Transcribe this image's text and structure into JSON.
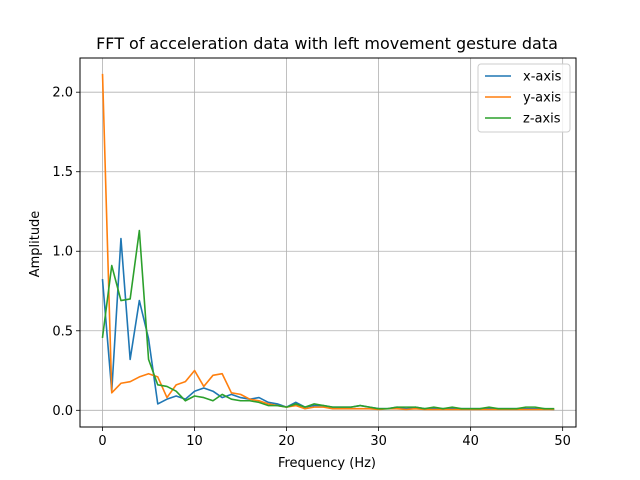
{
  "chart_data": {
    "type": "line",
    "title": "FFT of acceleration data with left movement gesture data",
    "xlabel": "Frequency (Hz)",
    "ylabel": "Amplitude",
    "xlim": [
      -2.45,
      51.45
    ],
    "ylim": [
      -0.105,
      2.215
    ],
    "x_ticks": [
      0,
      10,
      20,
      30,
      40,
      50
    ],
    "y_ticks": [
      0.0,
      0.5,
      1.0,
      1.5,
      2.0
    ],
    "x_tick_labels": [
      "0",
      "10",
      "20",
      "30",
      "40",
      "50"
    ],
    "y_tick_labels": [
      "0.0",
      "0.5",
      "1.0",
      "1.5",
      "2.0"
    ],
    "grid": true,
    "legend_position": "top-right",
    "x": [
      0,
      1,
      2,
      3,
      4,
      5,
      6,
      7,
      8,
      9,
      10,
      11,
      12,
      13,
      14,
      15,
      16,
      17,
      18,
      19,
      20,
      21,
      22,
      23,
      24,
      25,
      26,
      27,
      28,
      29,
      30,
      31,
      32,
      33,
      34,
      35,
      36,
      37,
      38,
      39,
      40,
      41,
      42,
      43,
      44,
      45,
      46,
      47,
      48,
      49
    ],
    "series": [
      {
        "name": "x-axis",
        "color": "#1f77b4",
        "values": [
          0.82,
          0.12,
          1.08,
          0.32,
          0.69,
          0.45,
          0.04,
          0.07,
          0.09,
          0.07,
          0.12,
          0.14,
          0.12,
          0.08,
          0.1,
          0.08,
          0.07,
          0.08,
          0.05,
          0.04,
          0.02,
          0.05,
          0.02,
          0.03,
          0.03,
          0.02,
          0.02,
          0.02,
          0.03,
          0.02,
          0.01,
          0.01,
          0.02,
          0.01,
          0.02,
          0.01,
          0.01,
          0.01,
          0.01,
          0.01,
          0.01,
          0.01,
          0.01,
          0.01,
          0.01,
          0.01,
          0.01,
          0.01,
          0.01,
          0.005
        ]
      },
      {
        "name": "y-axis",
        "color": "#ff7f0e",
        "values": [
          2.11,
          0.11,
          0.17,
          0.18,
          0.21,
          0.23,
          0.21,
          0.08,
          0.16,
          0.18,
          0.25,
          0.15,
          0.22,
          0.23,
          0.11,
          0.1,
          0.07,
          0.06,
          0.04,
          0.03,
          0.02,
          0.03,
          0.01,
          0.02,
          0.02,
          0.01,
          0.01,
          0.01,
          0.01,
          0.01,
          0.005,
          0.01,
          0.01,
          0.005,
          0.01,
          0.005,
          0.005,
          0.005,
          0.005,
          0.005,
          0.005,
          0.005,
          0.005,
          0.005,
          0.005,
          0.005,
          0.005,
          0.005,
          0.005,
          0.005
        ]
      },
      {
        "name": "z-axis",
        "color": "#2ca02c",
        "values": [
          0.46,
          0.91,
          0.69,
          0.7,
          1.13,
          0.32,
          0.16,
          0.15,
          0.12,
          0.06,
          0.09,
          0.08,
          0.06,
          0.1,
          0.07,
          0.06,
          0.06,
          0.05,
          0.03,
          0.03,
          0.02,
          0.04,
          0.02,
          0.04,
          0.03,
          0.02,
          0.02,
          0.02,
          0.03,
          0.02,
          0.01,
          0.01,
          0.02,
          0.02,
          0.02,
          0.01,
          0.02,
          0.01,
          0.02,
          0.01,
          0.01,
          0.01,
          0.02,
          0.01,
          0.01,
          0.01,
          0.02,
          0.02,
          0.01,
          0.01
        ]
      }
    ]
  }
}
